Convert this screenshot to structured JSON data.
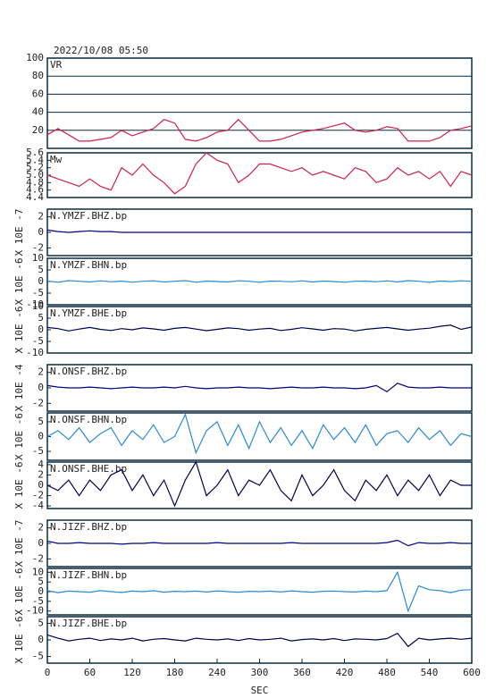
{
  "chart_data": [
    {
      "type": "line",
      "title": "2022/10/08 05:50",
      "label": "VR",
      "ylim": [
        0,
        100
      ],
      "yticks": [
        20,
        40,
        60,
        80,
        100
      ],
      "grid": true,
      "x": [
        0,
        15,
        30,
        45,
        60,
        75,
        90,
        105,
        120,
        135,
        150,
        165,
        180,
        195,
        210,
        225,
        240,
        255,
        270,
        285,
        300,
        315,
        330,
        345,
        360,
        375,
        390,
        405,
        420,
        435,
        450,
        465,
        480,
        495,
        510,
        525,
        540,
        555,
        570,
        585,
        600
      ],
      "series": [
        {
          "color": "#d0204a",
          "values": [
            15,
            22,
            15,
            8,
            8,
            10,
            12,
            20,
            14,
            18,
            22,
            32,
            28,
            10,
            8,
            12,
            18,
            20,
            32,
            20,
            8,
            8,
            10,
            14,
            18,
            20,
            22,
            25,
            28,
            20,
            18,
            20,
            24,
            22,
            8,
            8,
            8,
            12,
            20,
            22,
            25
          ]
        }
      ]
    },
    {
      "type": "line",
      "label": "Mw",
      "ylim": [
        4.4,
        5.6
      ],
      "yticks": [
        4.4,
        4.6,
        4.8,
        {
          "value": 5,
          "label": "5.0"
        },
        5.2,
        5.4,
        5.6
      ],
      "x": [
        0,
        15,
        30,
        45,
        60,
        75,
        90,
        105,
        120,
        135,
        150,
        165,
        180,
        195,
        210,
        225,
        240,
        255,
        270,
        285,
        300,
        315,
        330,
        345,
        360,
        375,
        390,
        405,
        420,
        435,
        450,
        465,
        480,
        495,
        510,
        525,
        540,
        555,
        570,
        585,
        600
      ],
      "series": [
        {
          "color": "#d0204a",
          "values": [
            5.0,
            4.9,
            4.8,
            4.7,
            4.9,
            4.7,
            4.6,
            5.2,
            5.0,
            5.3,
            5.0,
            4.8,
            4.5,
            4.7,
            5.3,
            5.6,
            5.4,
            5.3,
            4.8,
            5.0,
            5.3,
            5.3,
            5.2,
            5.1,
            5.2,
            5.0,
            5.1,
            5.0,
            4.9,
            5.2,
            5.1,
            4.8,
            4.9,
            5.2,
            5.0,
            5.1,
            4.9,
            5.1,
            4.7,
            5.1,
            5.0
          ]
        }
      ]
    },
    {
      "type": "line",
      "label": "N.YMZF.BHZ.bp",
      "ylabel": "X 10E -7",
      "ylim": [
        -3,
        3
      ],
      "yticks": [
        -2,
        0,
        2
      ],
      "x": [
        0,
        15,
        30,
        45,
        60,
        75,
        90,
        105,
        120,
        135,
        150,
        165,
        180,
        195,
        210,
        225,
        240,
        255,
        270,
        285,
        300,
        315,
        330,
        345,
        360,
        375,
        390,
        405,
        420,
        435,
        450,
        465,
        480,
        495,
        510,
        525,
        540,
        555,
        570,
        585,
        600
      ],
      "series": [
        {
          "color": "#000080",
          "values": [
            0.3,
            0.1,
            0,
            0.1,
            0.2,
            0.1,
            0.1,
            0,
            0,
            0,
            0,
            0,
            0,
            0,
            0,
            0,
            0,
            0,
            0,
            0,
            0,
            0,
            0,
            0,
            0,
            0,
            0,
            0,
            0,
            0,
            0,
            0,
            0,
            0,
            0,
            0,
            0,
            0,
            0,
            0,
            0
          ]
        }
      ]
    },
    {
      "type": "line",
      "label": "N.YMZF.BHN.bp",
      "ylabel": "X 10E -6",
      "ylim": [
        -10,
        10
      ],
      "yticks": [
        -10,
        -5,
        0,
        5,
        10
      ],
      "x": [
        0,
        15,
        30,
        45,
        60,
        75,
        90,
        105,
        120,
        135,
        150,
        165,
        180,
        195,
        210,
        225,
        240,
        255,
        270,
        285,
        300,
        315,
        330,
        345,
        360,
        375,
        390,
        405,
        420,
        435,
        450,
        465,
        480,
        495,
        510,
        525,
        540,
        555,
        570,
        585,
        600
      ],
      "series": [
        {
          "color": "#2a8ad4",
          "values": [
            0.2,
            -0.3,
            0.4,
            0.1,
            -0.2,
            0.3,
            -0.1,
            0.2,
            -0.3,
            0.1,
            0.3,
            -0.2,
            0.1,
            0.4,
            -0.3,
            0.2,
            0,
            -0.2,
            0.3,
            0.1,
            -0.3,
            0.2,
            0.1,
            -0.1,
            0.3,
            -0.2,
            0.2,
            0,
            -0.3,
            0.1,
            0.2,
            -0.1,
            0.3,
            -0.2,
            0.4,
            0.1,
            -0.3,
            0.2,
            0,
            0.3,
            0.1
          ]
        }
      ]
    },
    {
      "type": "line",
      "label": "N.YMZF.BHE.bp",
      "ylabel": "X 10E -6",
      "ylim": [
        -10,
        10
      ],
      "yticks": [
        -10,
        -5,
        0,
        5,
        10
      ],
      "x": [
        0,
        15,
        30,
        45,
        60,
        75,
        90,
        105,
        120,
        135,
        150,
        165,
        180,
        195,
        210,
        225,
        240,
        255,
        270,
        285,
        300,
        315,
        330,
        345,
        360,
        375,
        390,
        405,
        420,
        435,
        450,
        465,
        480,
        495,
        510,
        525,
        540,
        555,
        570,
        585,
        600
      ],
      "series": [
        {
          "color": "#000050",
          "values": [
            1,
            0.5,
            -0.5,
            0.3,
            1,
            0.2,
            -0.3,
            0.5,
            0,
            0.8,
            0.4,
            -0.2,
            0.6,
            1,
            0.3,
            -0.4,
            0.2,
            0.8,
            0.5,
            -0.2,
            0.3,
            0.6,
            -0.3,
            0.2,
            0.9,
            0.4,
            -0.2,
            0.5,
            0.3,
            -0.5,
            0.2,
            0.6,
            1,
            0.4,
            -0.2,
            0.3,
            0.7,
            1.5,
            2,
            0.2,
            1.2
          ]
        }
      ]
    },
    {
      "type": "line",
      "label": "N.ONSF.BHZ.bp",
      "ylabel": "X 10E -4",
      "ylim": [
        -3,
        3
      ],
      "yticks": [
        -2,
        0,
        2
      ],
      "x": [
        0,
        15,
        30,
        45,
        60,
        75,
        90,
        105,
        120,
        135,
        150,
        165,
        180,
        195,
        210,
        225,
        240,
        255,
        270,
        285,
        300,
        315,
        330,
        345,
        360,
        375,
        390,
        405,
        420,
        435,
        450,
        465,
        480,
        495,
        510,
        525,
        540,
        555,
        570,
        585,
        600
      ],
      "series": [
        {
          "color": "#000080",
          "values": [
            0.3,
            0.1,
            0,
            0,
            0.1,
            0,
            -0.1,
            0,
            0.1,
            0,
            0,
            0.1,
            0,
            0.2,
            0,
            -0.1,
            0,
            0,
            0.1,
            0,
            0,
            -0.1,
            0,
            0.1,
            0,
            0,
            0.1,
            0,
            0,
            -0.1,
            0,
            0.3,
            -0.5,
            0.6,
            0.1,
            0,
            0,
            0.1,
            0,
            0,
            0
          ]
        }
      ]
    },
    {
      "type": "line",
      "label": "N.ONSF.BHN.bp",
      "ylabel": "X 10E -6",
      "ylim": [
        -8,
        8
      ],
      "yticks": [
        -5,
        0,
        5
      ],
      "x": [
        0,
        15,
        30,
        45,
        60,
        75,
        90,
        105,
        120,
        135,
        150,
        165,
        180,
        195,
        210,
        225,
        240,
        255,
        270,
        285,
        300,
        315,
        330,
        345,
        360,
        375,
        390,
        405,
        420,
        435,
        450,
        465,
        480,
        495,
        510,
        525,
        540,
        555,
        570,
        585,
        600
      ],
      "series": [
        {
          "color": "#2a8ad4",
          "values": [
            0,
            2,
            -1,
            3,
            -2,
            1,
            3,
            -3,
            2,
            -1,
            4,
            -2,
            0,
            7.5,
            -5.5,
            2,
            5,
            -3,
            4,
            -4,
            5,
            -2,
            3,
            -3,
            2,
            -4,
            4,
            -1,
            3,
            -2,
            4,
            -3,
            1,
            2,
            -2,
            3,
            -1,
            2,
            -3,
            1,
            0
          ]
        }
      ]
    },
    {
      "type": "line",
      "label": "N.ONSF.BHE.bp",
      "ylabel": "X 10E -6",
      "ylim": [
        -4.5,
        4.5
      ],
      "yticks": [
        -4,
        -2,
        0,
        2,
        4
      ],
      "x": [
        0,
        15,
        30,
        45,
        60,
        75,
        90,
        105,
        120,
        135,
        150,
        165,
        180,
        195,
        210,
        225,
        240,
        255,
        270,
        285,
        300,
        315,
        330,
        345,
        360,
        375,
        390,
        405,
        420,
        435,
        450,
        465,
        480,
        495,
        510,
        525,
        540,
        555,
        570,
        585,
        600
      ],
      "series": [
        {
          "color": "#000050",
          "values": [
            0,
            -1,
            1,
            -2,
            1,
            -1,
            2,
            3,
            -1,
            2,
            -2,
            1,
            -4,
            1,
            4.5,
            -2,
            0,
            3,
            -2,
            1,
            0,
            3,
            -1,
            -3,
            2,
            -2,
            0,
            3,
            -1,
            -3,
            1,
            -1,
            2,
            -2,
            1,
            -1,
            2,
            -2,
            1,
            0,
            0
          ]
        }
      ]
    },
    {
      "type": "line",
      "label": "N.JIZF.BHZ.bp",
      "ylabel": "X 10E -7",
      "ylim": [
        -3,
        3
      ],
      "yticks": [
        -2,
        0,
        2
      ],
      "x": [
        0,
        15,
        30,
        45,
        60,
        75,
        90,
        105,
        120,
        135,
        150,
        165,
        180,
        195,
        210,
        225,
        240,
        255,
        270,
        285,
        300,
        315,
        330,
        345,
        360,
        375,
        390,
        405,
        420,
        435,
        450,
        465,
        480,
        495,
        510,
        525,
        540,
        555,
        570,
        585,
        600
      ],
      "series": [
        {
          "color": "#000080",
          "values": [
            0.3,
            0,
            0,
            0.1,
            0,
            0,
            0,
            -0.1,
            0,
            0,
            0.1,
            0,
            0,
            0,
            0,
            0,
            0.1,
            0,
            0,
            0,
            0,
            0,
            0,
            0.1,
            0,
            0,
            0,
            0,
            0,
            0,
            0,
            0,
            0.1,
            0.4,
            -0.3,
            0.1,
            0,
            0,
            0.1,
            0,
            0
          ]
        }
      ]
    },
    {
      "type": "line",
      "label": "N.JIZF.BHN.bp",
      "ylabel": "X 10E -6",
      "ylim": [
        -12,
        12
      ],
      "yticks": [
        -10,
        -5,
        0,
        5,
        10
      ],
      "x": [
        0,
        15,
        30,
        45,
        60,
        75,
        90,
        105,
        120,
        135,
        150,
        165,
        180,
        195,
        210,
        225,
        240,
        255,
        270,
        285,
        300,
        315,
        330,
        345,
        360,
        375,
        390,
        405,
        420,
        435,
        450,
        465,
        480,
        495,
        510,
        525,
        540,
        555,
        570,
        585,
        600
      ],
      "series": [
        {
          "color": "#2a8ad4",
          "values": [
            0.5,
            -0.5,
            0.3,
            0,
            -0.3,
            0.5,
            0,
            -0.4,
            0.3,
            0,
            0.5,
            -0.3,
            0.2,
            0,
            0.3,
            -0.2,
            0.4,
            0,
            -0.3,
            0.2,
            0,
            0.3,
            -0.2,
            0.4,
            0,
            -0.3,
            0.2,
            0.3,
            0,
            -0.2,
            0.3,
            0,
            0.5,
            10,
            -10,
            3,
            1,
            0.5,
            -0.5,
            0.8,
            1
          ]
        }
      ]
    },
    {
      "type": "line",
      "label": "N.JIZF.BHE.bp",
      "ylabel": "X 10E -6",
      "ylim": [
        -7,
        7
      ],
      "yticks": [
        -5,
        0,
        5
      ],
      "xlim": [
        0,
        600
      ],
      "xticks": [
        0,
        60,
        120,
        180,
        240,
        300,
        360,
        420,
        480,
        540,
        600
      ],
      "xlabel": "SEC",
      "x": [
        0,
        15,
        30,
        45,
        60,
        75,
        90,
        105,
        120,
        135,
        150,
        165,
        180,
        195,
        210,
        225,
        240,
        255,
        270,
        285,
        300,
        315,
        330,
        345,
        360,
        375,
        390,
        405,
        420,
        435,
        450,
        465,
        480,
        495,
        510,
        525,
        540,
        555,
        570,
        585,
        600
      ],
      "series": [
        {
          "color": "#000050",
          "values": [
            1.5,
            0.5,
            -0.3,
            0.2,
            0.5,
            -0.2,
            0.3,
            0,
            0.5,
            -0.3,
            0.2,
            0.4,
            0,
            -0.3,
            0.5,
            0.2,
            0,
            0.3,
            -0.2,
            0.4,
            0,
            0.2,
            0.5,
            -0.3,
            0.1,
            0.3,
            0,
            0.4,
            -0.2,
            0.3,
            0.2,
            0,
            0.4,
            2,
            -2,
            0.5,
            0,
            0.3,
            0.5,
            0.2,
            0.5
          ]
        }
      ]
    }
  ]
}
